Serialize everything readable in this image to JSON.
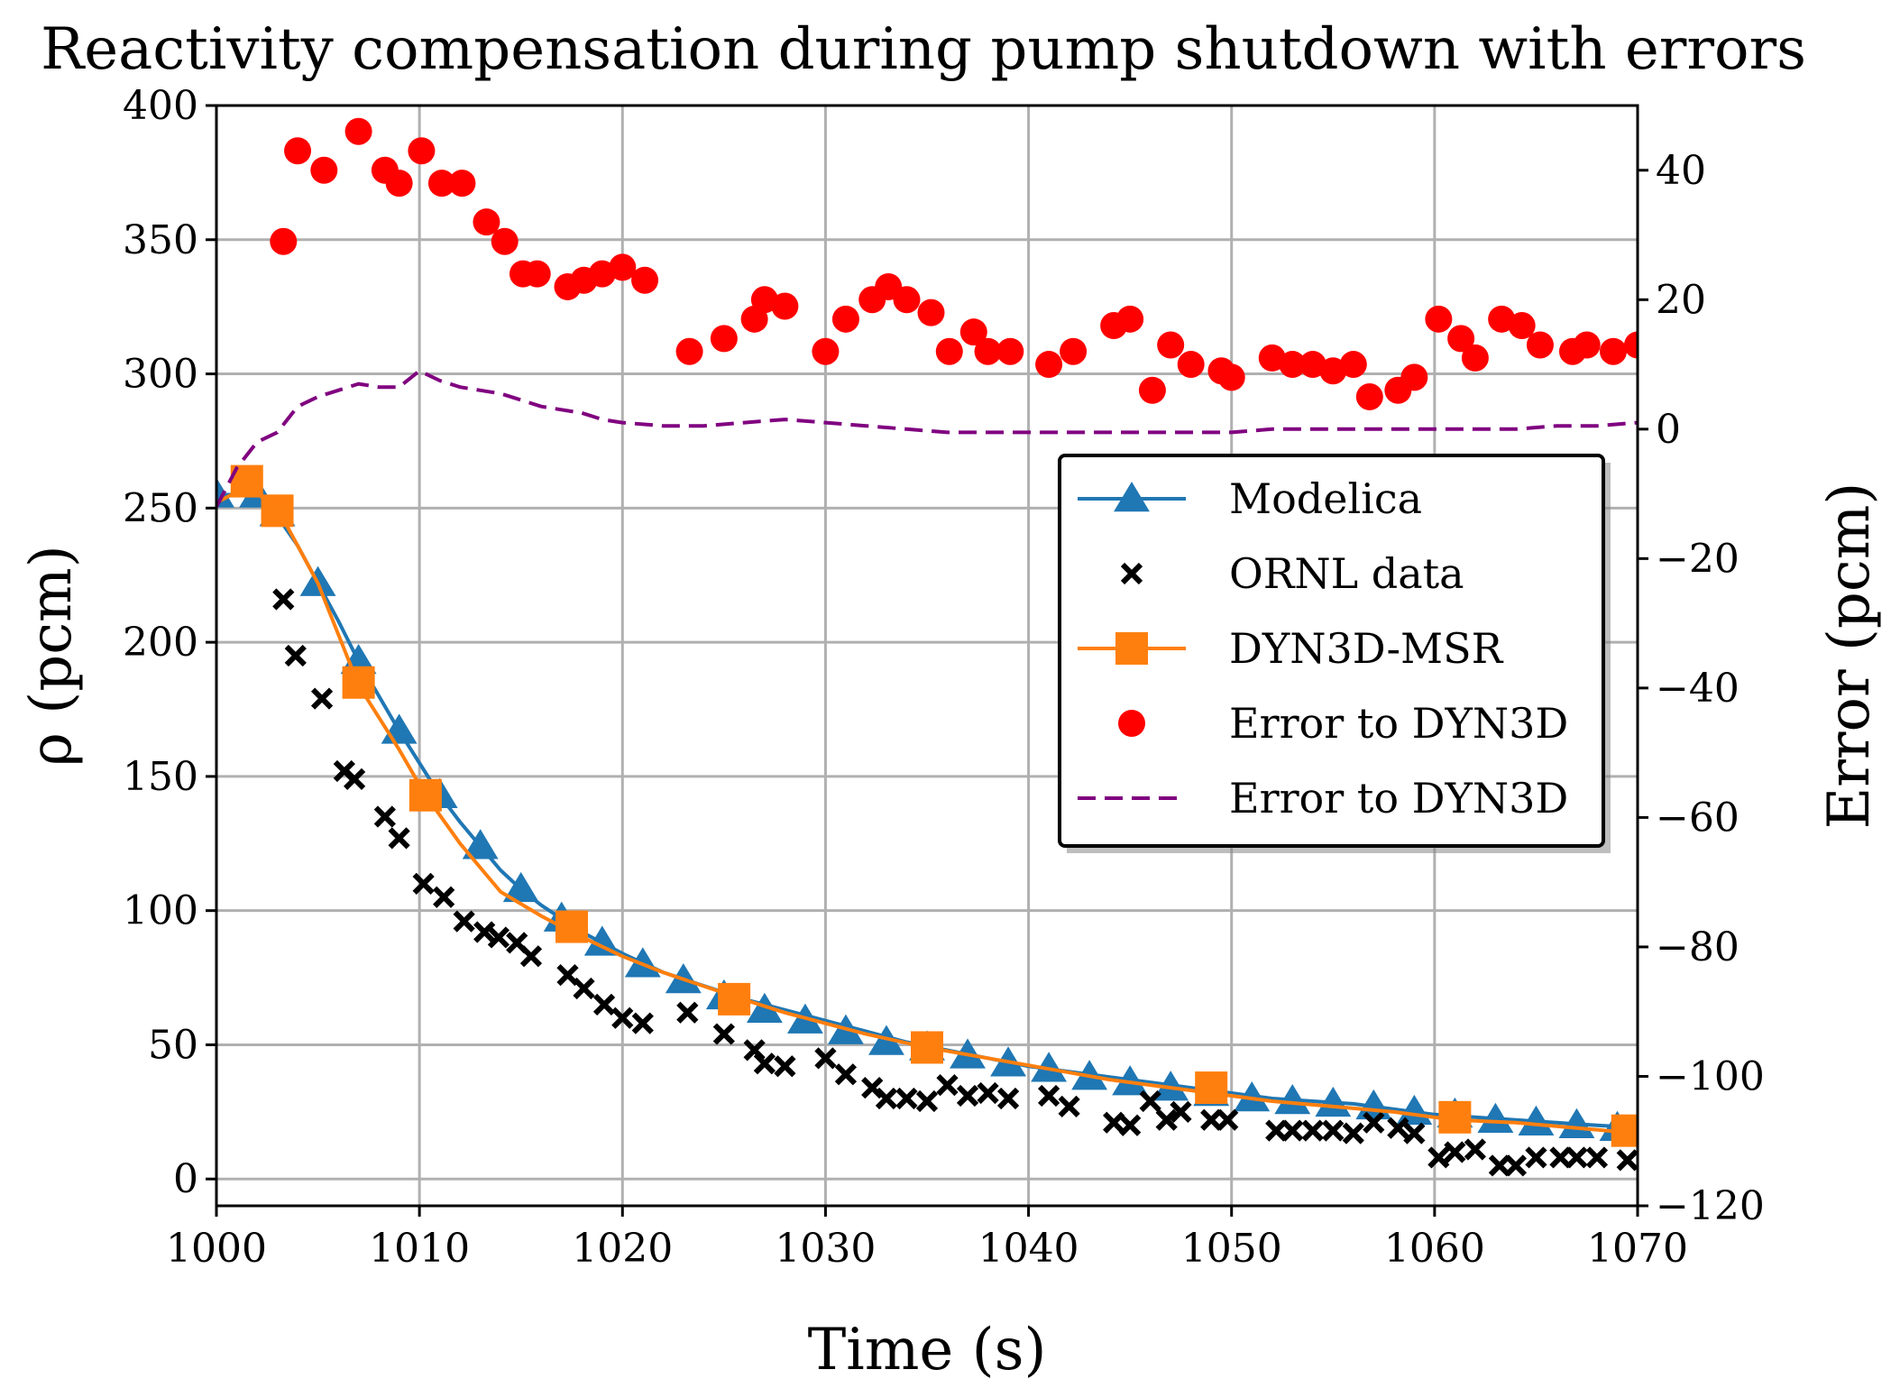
{
  "chart_data": {
    "type": "line",
    "title": "Reactivity compensation during pump shutdown with errors",
    "xlabel": "Time (s)",
    "ylabel": "ρ (pcm)",
    "y2label": "Error (pcm)",
    "xlim": [
      1000,
      1070
    ],
    "ylim": [
      -10,
      400
    ],
    "y2lim": [
      -120,
      50
    ],
    "xticks": [
      1000,
      1010,
      1020,
      1030,
      1040,
      1050,
      1060,
      1070
    ],
    "yticks": [
      0,
      50,
      100,
      150,
      200,
      250,
      300,
      350,
      400
    ],
    "y2ticks": [
      -120,
      -100,
      -80,
      -60,
      -40,
      -20,
      0,
      20,
      40
    ],
    "grid": true,
    "legend_position": "center-right",
    "colors": {
      "modelica": "#1f77b4",
      "ornl": "#000000",
      "dyn3d": "#ff7f0e",
      "error_dots": "#ff0000",
      "error_dash": "#800080"
    },
    "series": [
      {
        "name": "Modelica",
        "axis": "left",
        "style": "line-triangle",
        "x": [
          1000,
          1001,
          1002,
          1003,
          1004,
          1005,
          1006,
          1007,
          1008,
          1009,
          1010,
          1011,
          1012,
          1013,
          1014,
          1015,
          1016,
          1017,
          1018,
          1019,
          1020,
          1022,
          1024,
          1026,
          1028,
          1030,
          1032,
          1034,
          1036,
          1038,
          1040,
          1042,
          1044,
          1046,
          1048,
          1050,
          1052,
          1054,
          1056,
          1058,
          1060,
          1062,
          1064,
          1066,
          1068,
          1070
        ],
        "values": [
          255,
          255,
          254,
          247,
          236,
          222,
          208,
          193,
          180,
          167,
          155,
          143,
          133,
          124,
          115,
          108,
          102,
          97,
          92,
          88,
          84,
          77,
          72,
          67,
          63,
          59,
          55,
          51,
          48,
          45,
          42,
          40,
          38,
          36,
          34,
          32,
          30,
          29,
          28,
          26,
          24,
          23,
          22,
          21,
          20,
          19
        ],
        "marker_x": [
          1000,
          1002,
          1003,
          1005,
          1007,
          1009,
          1011,
          1013,
          1015,
          1017,
          1019,
          1021,
          1023,
          1025,
          1027,
          1029,
          1031,
          1033,
          1035,
          1037,
          1039,
          1041,
          1043,
          1045,
          1047,
          1049,
          1051,
          1053,
          1055,
          1057,
          1059,
          1061,
          1063,
          1065,
          1067,
          1069
        ],
        "marker_values": [
          255,
          255,
          248,
          222,
          193,
          167,
          143,
          124,
          108,
          97,
          88,
          80,
          74,
          68,
          63,
          59,
          55,
          51,
          49,
          46,
          43,
          41,
          38,
          36,
          34,
          32,
          30,
          29,
          28,
          27,
          25,
          24,
          22,
          21,
          20,
          19
        ]
      },
      {
        "name": "ORNL data",
        "axis": "left",
        "style": "x-marker",
        "x": [
          1003.3,
          1003.9,
          1005.2,
          1006.3,
          1006.8,
          1008.3,
          1009.0,
          1010.2,
          1011.2,
          1012.2,
          1013.2,
          1013.9,
          1014.8,
          1015.5,
          1017.3,
          1018.1,
          1019.1,
          1020.0,
          1021.0,
          1023.2,
          1025.0,
          1026.5,
          1027.0,
          1028.0,
          1030.0,
          1031.0,
          1032.3,
          1033.0,
          1034.0,
          1035.0,
          1036.0,
          1037.0,
          1038.0,
          1039.0,
          1041.0,
          1042.0,
          1044.2,
          1045.0,
          1046.0,
          1046.8,
          1047.5,
          1049.0,
          1049.8,
          1052.2,
          1053.0,
          1054.0,
          1055.0,
          1056.0,
          1057.0,
          1058.2,
          1059.0,
          1060.2,
          1061.0,
          1062.0,
          1063.2,
          1064.0,
          1065.0,
          1066.2,
          1067.0,
          1068.0,
          1069.5
        ],
        "values": [
          216,
          195,
          179,
          152,
          149,
          135,
          127,
          110,
          105,
          96,
          92,
          90,
          88,
          83,
          76,
          71,
          65,
          60,
          58,
          62,
          54,
          48,
          43,
          42,
          45,
          39,
          34,
          30,
          30,
          29,
          35,
          31,
          32,
          30,
          31,
          27,
          21,
          20,
          29,
          22,
          25,
          22,
          22,
          18,
          18,
          18,
          18,
          17,
          21,
          19,
          17,
          8,
          10,
          11,
          5,
          5,
          8,
          8,
          8,
          8,
          7
        ]
      },
      {
        "name": "DYN3D-MSR",
        "axis": "left",
        "style": "line-square",
        "x": [
          1000,
          1001.5,
          1003,
          1005,
          1007,
          1009,
          1010.3,
          1012,
          1014,
          1016,
          1017.5,
          1020,
          1022,
          1025.5,
          1028,
          1030,
          1032,
          1035,
          1038,
          1041,
          1044,
          1046,
          1049,
          1052,
          1055,
          1058,
          1061,
          1064,
          1067,
          1070
        ],
        "values": [
          252,
          258,
          250,
          222,
          184,
          160,
          143,
          125,
          107,
          98,
          92,
          83,
          77,
          68,
          62,
          58,
          54,
          49,
          45,
          41,
          37,
          35,
          32,
          29,
          27,
          25,
          22,
          21,
          19,
          17
        ],
        "marker_x": [
          1001.5,
          1003,
          1007,
          1010.3,
          1017.5,
          1025.5,
          1035,
          1049,
          1061,
          1069.5
        ],
        "marker_values": [
          260,
          249,
          185,
          143,
          94,
          67,
          49,
          34,
          23,
          18
        ]
      },
      {
        "name": "Error to DYN3D",
        "axis": "right",
        "style": "dot",
        "x": [
          1003.3,
          1004.0,
          1005.3,
          1007.0,
          1008.3,
          1009.0,
          1010.1,
          1011.1,
          1012.1,
          1013.3,
          1014.2,
          1015.1,
          1015.8,
          1017.3,
          1018.1,
          1019.0,
          1020.0,
          1021.1,
          1023.3,
          1025.0,
          1026.5,
          1027.0,
          1028.0,
          1030.0,
          1031.0,
          1032.3,
          1033.1,
          1034.0,
          1035.2,
          1036.1,
          1037.3,
          1038.0,
          1039.1,
          1041.0,
          1042.2,
          1044.2,
          1045.0,
          1046.1,
          1047.0,
          1048.0,
          1049.5,
          1050.0,
          1052.0,
          1053.0,
          1054.0,
          1055.0,
          1056.0,
          1056.8,
          1058.2,
          1059.0,
          1060.2,
          1061.3,
          1062.0,
          1063.3,
          1064.3,
          1065.2,
          1066.8,
          1067.5,
          1068.8,
          1070.0
        ],
        "values": [
          29,
          43,
          40,
          46,
          40,
          38,
          43,
          38,
          38,
          32,
          29,
          24,
          24,
          22,
          23,
          24,
          25,
          23,
          12,
          14,
          17,
          20,
          19,
          12,
          17,
          20,
          22,
          20,
          18,
          12,
          15,
          12,
          12,
          10,
          12,
          16,
          17,
          6,
          13,
          10,
          9,
          8,
          11,
          10,
          10,
          9,
          10,
          5,
          6,
          8,
          17,
          14,
          11,
          17,
          16,
          13,
          12,
          13,
          12,
          13
        ]
      },
      {
        "name": "Error to DYN3D",
        "axis": "right",
        "style": "dashed-line",
        "x": [
          1000,
          1001,
          1002,
          1003,
          1004,
          1005,
          1006,
          1007,
          1008,
          1009,
          1010,
          1011,
          1012,
          1013,
          1014,
          1015,
          1016,
          1017,
          1018,
          1019,
          1020,
          1022,
          1024,
          1026,
          1028,
          1030,
          1032,
          1034,
          1036,
          1038,
          1040,
          1042,
          1044,
          1046,
          1048,
          1050,
          1052,
          1054,
          1056,
          1058,
          1060,
          1062,
          1064,
          1066,
          1068,
          1070
        ],
        "values": [
          -12,
          -6,
          -2,
          -0.5,
          3.5,
          5,
          6,
          7,
          6.5,
          6.5,
          9,
          7.5,
          6.5,
          6,
          5.5,
          4.5,
          3.5,
          3,
          2.5,
          1.5,
          1,
          0.5,
          0.5,
          1,
          1.5,
          1,
          0.5,
          0,
          -0.5,
          -0.5,
          -0.5,
          -0.5,
          -0.5,
          -0.5,
          -0.5,
          -0.5,
          0,
          0,
          0,
          0,
          0,
          0,
          0,
          0.5,
          0.5,
          1
        ]
      }
    ]
  }
}
